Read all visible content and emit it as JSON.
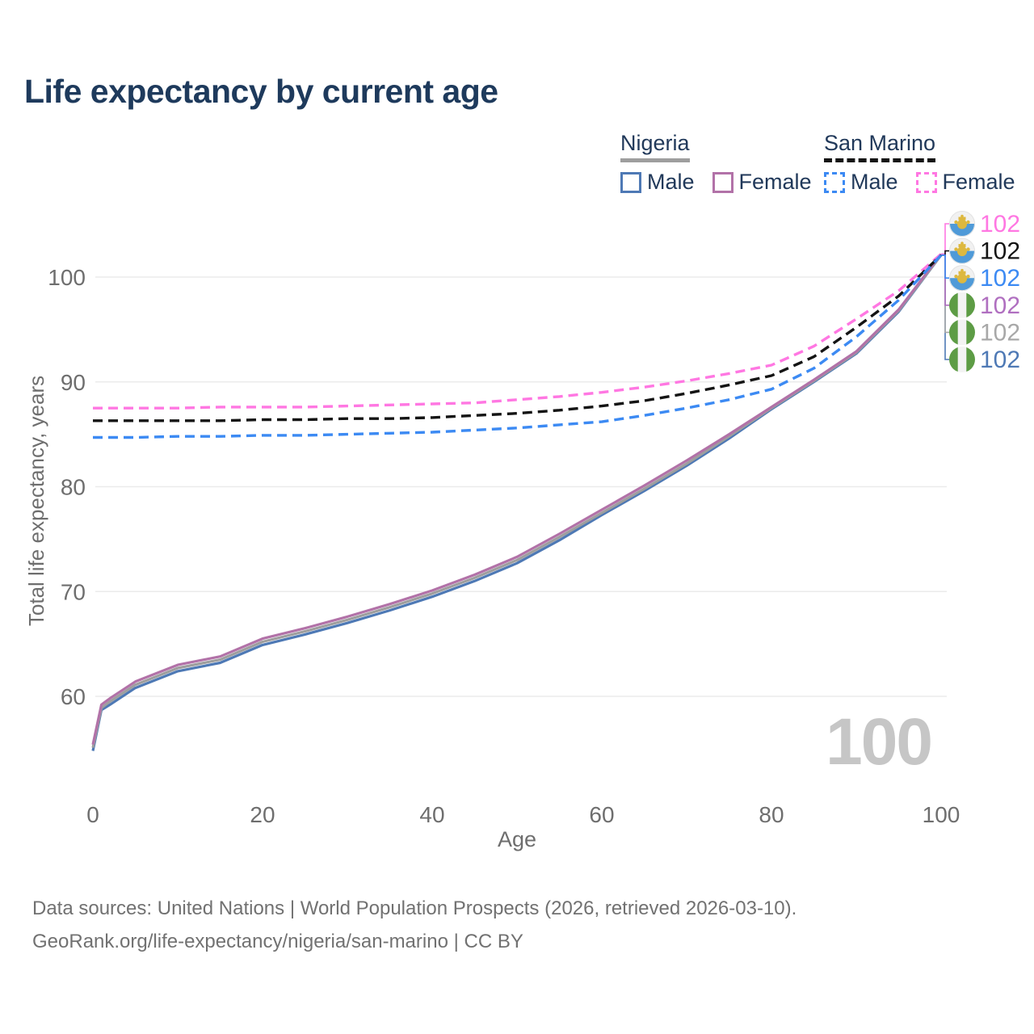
{
  "title": "Life expectancy by current age",
  "legend": {
    "nigeria": {
      "name": "Nigeria",
      "male_label": "Male",
      "female_label": "Female"
    },
    "san_marino": {
      "name": "San Marino",
      "male_label": "Male",
      "female_label": "Female"
    }
  },
  "age_counter": "100",
  "footer": {
    "line1": "Data sources: United Nations | World Population Prospects (2026, retrieved 2026-03-10).",
    "line2": "GeoRank.org/life-expectancy/nigeria/san-marino | CC BY"
  },
  "chart_data": {
    "type": "line",
    "title": "Life expectancy by current age",
    "xlabel": "Age",
    "ylabel": "Total life expectancy, years",
    "xlim": [
      0,
      100
    ],
    "ylim": [
      54,
      104
    ],
    "x_ticks": [
      0,
      20,
      40,
      60,
      80,
      100
    ],
    "y_ticks": [
      60,
      70,
      80,
      90,
      100
    ],
    "grid": true,
    "legend_position": "top-right",
    "x": [
      0,
      1,
      2,
      5,
      10,
      15,
      20,
      25,
      30,
      35,
      40,
      45,
      50,
      55,
      60,
      65,
      70,
      75,
      80,
      85,
      90,
      95,
      100
    ],
    "series": [
      {
        "key": "nigeria-male",
        "name": "Nigeria Male",
        "country": "nigeria",
        "sex": "male",
        "color": "#4e79b5",
        "dash": false,
        "values": [
          54.8,
          58.7,
          59.2,
          60.8,
          62.4,
          63.2,
          64.9,
          65.9,
          67.0,
          68.2,
          69.5,
          71.0,
          72.7,
          74.9,
          77.3,
          79.6,
          82.0,
          84.6,
          87.4,
          90.0,
          92.7,
          96.7,
          102.1
        ],
        "end_label": {
          "value": "102",
          "row": 5,
          "color": "#4e79b5",
          "flag": "nigeria"
        }
      },
      {
        "key": "nigeria-combined",
        "name": "Nigeria Combined",
        "country": "nigeria",
        "sex": "both",
        "color": "#9e9e9e",
        "dash": false,
        "values": [
          55.1,
          58.9,
          59.5,
          61.1,
          62.7,
          63.5,
          65.2,
          66.2,
          67.3,
          68.5,
          69.8,
          71.3,
          73.0,
          75.2,
          77.5,
          79.8,
          82.2,
          84.8,
          87.5,
          90.1,
          92.8,
          96.8,
          102.1
        ],
        "end_label": {
          "value": "102",
          "row": 4,
          "color": "#a8a8a8",
          "flag": "nigeria"
        }
      },
      {
        "key": "nigeria-female",
        "name": "Nigeria Female",
        "country": "nigeria",
        "sex": "female",
        "color": "#b272a8",
        "dash": false,
        "values": [
          55.4,
          59.2,
          59.8,
          61.4,
          63.0,
          63.8,
          65.5,
          66.5,
          67.6,
          68.8,
          70.1,
          71.6,
          73.3,
          75.5,
          77.8,
          80.1,
          82.5,
          85.0,
          87.6,
          90.2,
          92.9,
          96.9,
          102.2
        ],
        "end_label": {
          "value": "102",
          "row": 3,
          "color": "#b06fc0",
          "flag": "nigeria"
        }
      },
      {
        "key": "san-marino-female",
        "name": "San Marino Female",
        "country": "san-marino",
        "sex": "female",
        "color": "#ff77e2",
        "dash": true,
        "values": [
          87.5,
          87.5,
          87.5,
          87.5,
          87.5,
          87.6,
          87.6,
          87.6,
          87.7,
          87.8,
          87.9,
          88.0,
          88.3,
          88.6,
          89.0,
          89.5,
          90.1,
          90.8,
          91.6,
          93.4,
          96.0,
          98.7,
          102.2
        ],
        "end_label": {
          "value": "102",
          "row": 0,
          "color": "#ff77e2",
          "flag": "san-marino"
        }
      },
      {
        "key": "san-marino-combined",
        "name": "San Marino Combined",
        "country": "san-marino",
        "sex": "both",
        "color": "#141414",
        "dash": true,
        "values": [
          86.3,
          86.3,
          86.3,
          86.3,
          86.3,
          86.3,
          86.4,
          86.4,
          86.5,
          86.5,
          86.6,
          86.8,
          87.0,
          87.3,
          87.7,
          88.2,
          88.9,
          89.7,
          90.6,
          92.4,
          95.2,
          98.2,
          102.1
        ],
        "end_label": {
          "value": "102",
          "row": 1,
          "color": "#141414",
          "flag": "san-marino"
        }
      },
      {
        "key": "san-marino-male",
        "name": "San Marino Male",
        "country": "san-marino",
        "sex": "male",
        "color": "#3c8af3",
        "dash": true,
        "values": [
          84.7,
          84.7,
          84.7,
          84.7,
          84.8,
          84.8,
          84.9,
          84.9,
          85.0,
          85.1,
          85.2,
          85.4,
          85.6,
          85.9,
          86.2,
          86.8,
          87.5,
          88.3,
          89.3,
          91.3,
          94.3,
          97.8,
          102.1
        ],
        "end_label": {
          "value": "102",
          "row": 2,
          "color": "#3c8af3",
          "flag": "san-marino"
        }
      }
    ],
    "colors": {
      "nigeria_flag_green": "#5d9c45",
      "san_marino_flag_blue": "#4f9ad8",
      "emblem_gold": "#ddb83f",
      "gridline": "#ebebeb",
      "axis_text": "#6e6e6e"
    }
  }
}
